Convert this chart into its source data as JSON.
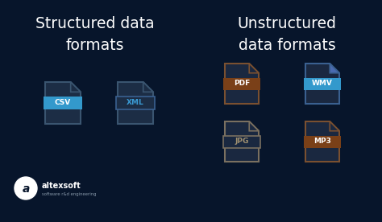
{
  "background_color": "#07152b",
  "title_left": "Structured data\nformats",
  "title_right": "Unstructured\ndata formats",
  "title_color": "#ffffff",
  "title_fontsize": 13.5,
  "doc_body_color_structured": "#1c2d45",
  "doc_outline_structured": "#3a5570",
  "doc_body_color_unstruct": "#1a2840",
  "doc_outline_pdf": "#7a5030",
  "doc_outline_wmv": "#3a6090",
  "doc_outline_jpg": "#7a7060",
  "doc_outline_mp3": "#7a5030",
  "csv_label_fill": "#3399cc",
  "csv_label_text": "#ffffff",
  "xml_label_fill": "none",
  "xml_label_border": "#3a6090",
  "xml_label_text": "#3a9ad4",
  "pdf_label_fill": "#7a4018",
  "pdf_label_text": "#ffffff",
  "wmv_label_fill": "#3399cc",
  "wmv_label_text": "#ffffff",
  "wmv_fold_color": "#4a6ab0",
  "jpg_label_fill": "none",
  "jpg_label_border": "#7a7060",
  "jpg_label_text": "#a09070",
  "mp3_label_fill": "#7a4018",
  "mp3_label_text": "#ffffff",
  "logo_text": "altexsoft",
  "logo_subtext": "software r&d engineering"
}
